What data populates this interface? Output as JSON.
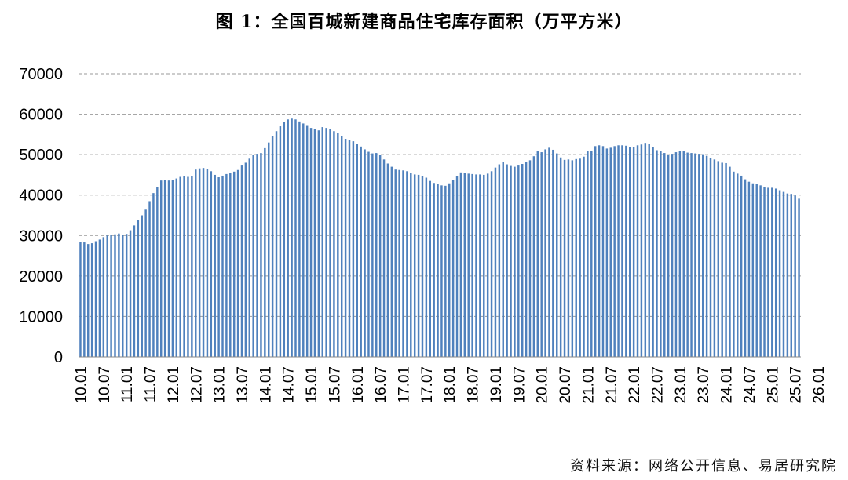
{
  "chart_data": {
    "type": "bar",
    "title": "图 1：全国百城新建商品住宅库存面积（万平方米）",
    "source": "资料来源：网络公开信息、易居研究院",
    "ylim": [
      0,
      70000
    ],
    "yticks": [
      0,
      10000,
      20000,
      30000,
      40000,
      50000,
      60000,
      70000
    ],
    "grid": true,
    "bar_color": "#4F81BD",
    "x_tick_labels": [
      "10.01",
      "10.07",
      "11.01",
      "11.07",
      "12.01",
      "12.07",
      "13.01",
      "13.07",
      "14.01",
      "14.07",
      "15.01",
      "15.07",
      "16.01",
      "16.07",
      "17.01",
      "17.07",
      "18.01",
      "18.07",
      "19.01",
      "19.07",
      "20.01",
      "20.07",
      "21.01",
      "21.07",
      "22.01",
      "22.07",
      "23.01",
      "23.07",
      "24.01",
      "24.07",
      "25.01",
      "25.07",
      "26.01"
    ],
    "series": [
      {
        "values": [
          28400,
          28300,
          27900,
          28100,
          28600,
          29000,
          29600,
          30000,
          30200,
          30300,
          30500,
          30100,
          30400,
          31300,
          32500,
          33800,
          35000,
          36400,
          38500,
          40500,
          42000,
          43600,
          43800,
          43600,
          43700,
          44100,
          44500,
          44600,
          44500,
          44700,
          46300,
          46600,
          46700,
          46500,
          45900,
          45000,
          44400,
          44800,
          45200,
          45400,
          45800,
          46200,
          47300,
          48000,
          49000,
          50000,
          50200,
          50400,
          51600,
          53000,
          54500,
          55800,
          57000,
          58000,
          58700,
          58900,
          58700,
          58200,
          57700,
          57100,
          56600,
          56300,
          56000,
          56800,
          56600,
          56300,
          55800,
          55300,
          54500,
          53900,
          53700,
          53300,
          52700,
          52000,
          51300,
          50700,
          50300,
          50400,
          49900,
          48800,
          47800,
          47000,
          46300,
          46200,
          46100,
          45900,
          45500,
          45100,
          45000,
          44700,
          44300,
          43500,
          43000,
          42700,
          42400,
          42300,
          42900,
          43800,
          44700,
          45600,
          45500,
          45300,
          45200,
          45100,
          45100,
          45000,
          45300,
          45900,
          46800,
          47600,
          48100,
          47600,
          47200,
          47000,
          47300,
          47700,
          48200,
          48600,
          49600,
          50800,
          50600,
          51300,
          51700,
          51200,
          50300,
          49300,
          48700,
          48800,
          48600,
          48900,
          49000,
          49500,
          50800,
          51000,
          52100,
          52300,
          52100,
          51500,
          51700,
          52100,
          52300,
          52300,
          52200,
          51900,
          51900,
          52300,
          52500,
          52900,
          52600,
          51800,
          51100,
          50800,
          50400,
          50000,
          50200,
          50600,
          50800,
          50800,
          50500,
          50400,
          50300,
          50200,
          50100,
          49700,
          49200,
          48800,
          48400,
          48000,
          47900,
          47000,
          45800,
          45300,
          44800,
          43900,
          43300,
          42900,
          42700,
          42400,
          42000,
          41800,
          41800,
          41600,
          41200,
          40800,
          40400,
          40300,
          39900,
          39100
        ]
      }
    ]
  }
}
